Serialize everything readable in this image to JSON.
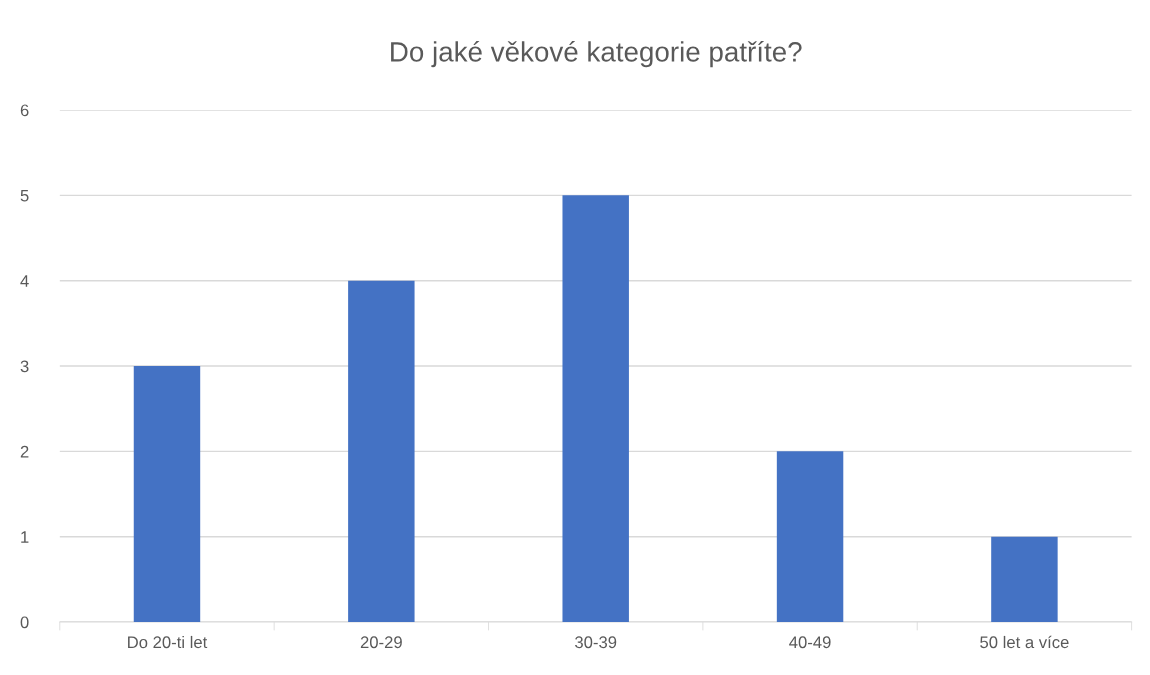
{
  "chart_data": {
    "type": "bar",
    "title": "Do jaké věkové kategorie patříte?",
    "categories": [
      "Do 20-ti let",
      "20-29",
      "30-39",
      "40-49",
      "50 let a více"
    ],
    "values": [
      3,
      4,
      5,
      2,
      1
    ],
    "color": "#4472c4",
    "ylim": [
      0,
      6
    ],
    "yticks": [
      0,
      1,
      2,
      3,
      4,
      5,
      6
    ],
    "grid": "y"
  }
}
